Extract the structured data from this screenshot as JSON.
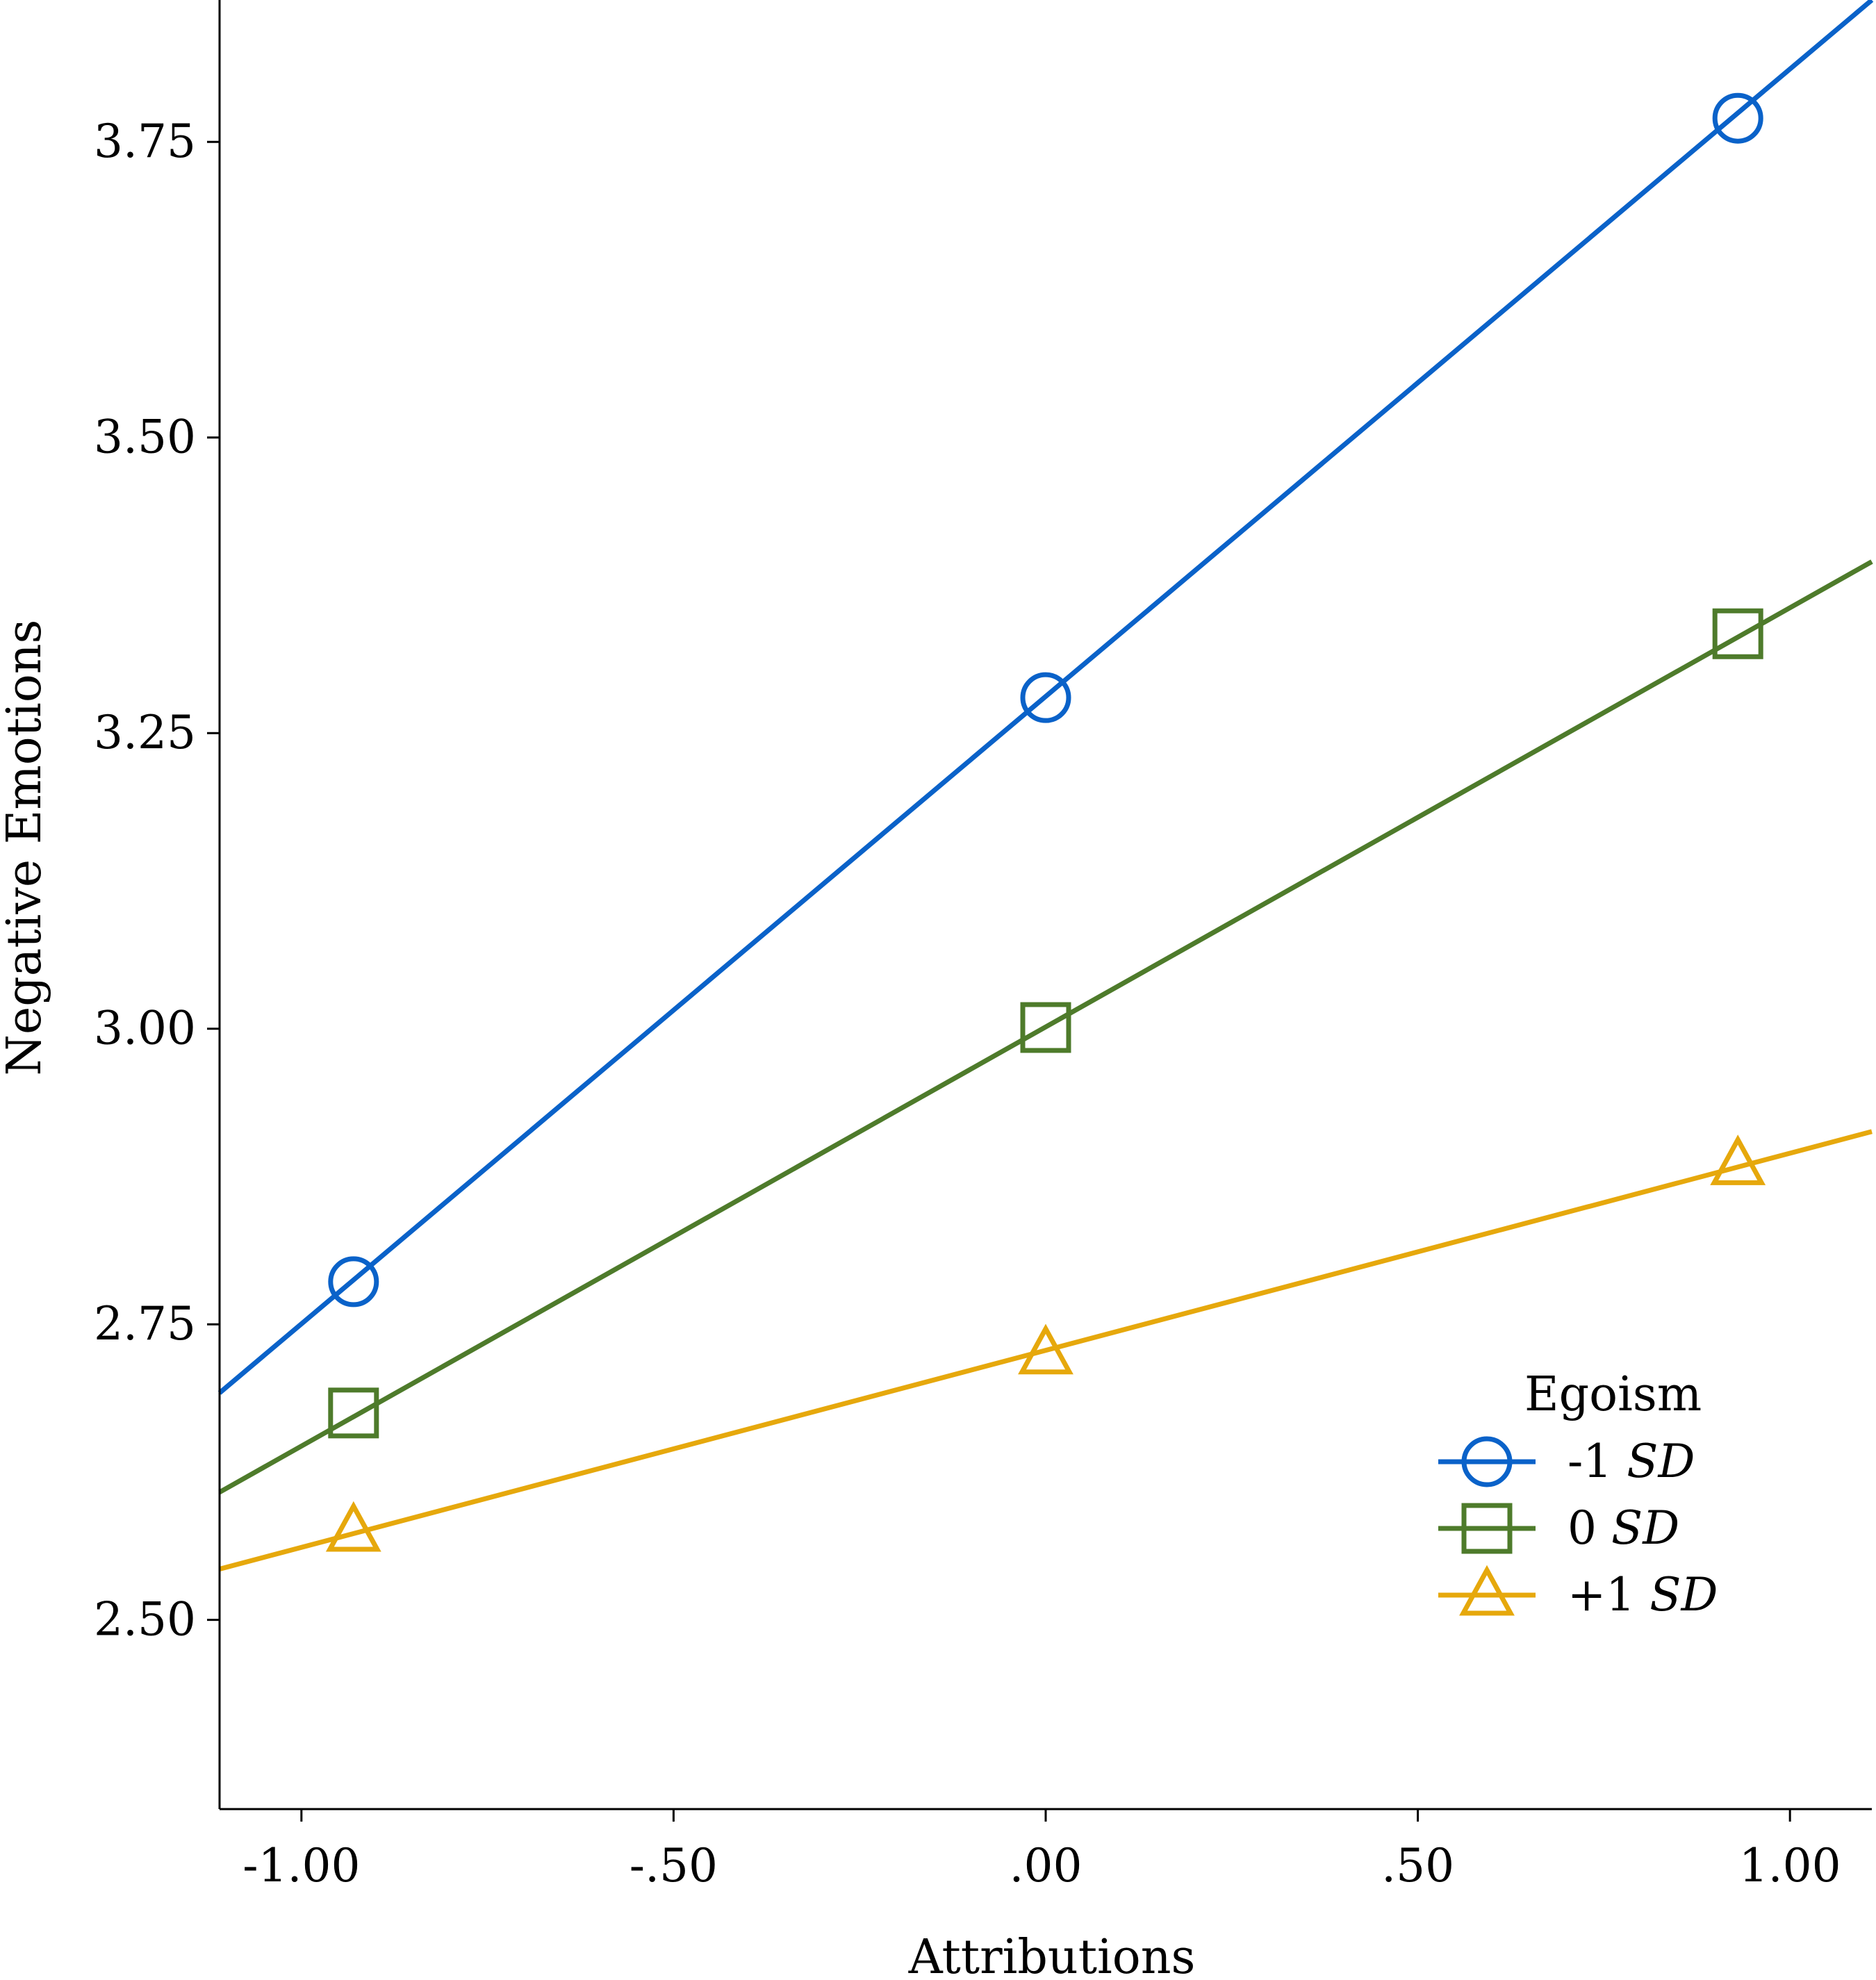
{
  "chart_data": {
    "type": "line",
    "title": "",
    "xlabel": "Attributions",
    "ylabel": "Negative Emotions",
    "xlim": [
      -1.11,
      1.11
    ],
    "ylim": [
      2.34,
      3.87
    ],
    "xticks": [
      -1.0,
      -0.5,
      0.0,
      0.5,
      1.0
    ],
    "xtick_labels": [
      "-1.00",
      "-.50",
      ".00",
      ".50",
      "1.00"
    ],
    "yticks": [
      2.5,
      2.75,
      3.0,
      3.25,
      3.5,
      3.75
    ],
    "ytick_labels": [
      "2.50",
      "2.75",
      "3.00",
      "3.25",
      "3.50",
      "3.75"
    ],
    "grid": false,
    "legend": {
      "title": "Egoism",
      "placement": "lower-right"
    },
    "series": [
      {
        "name": "-1",
        "name_suffix": "SD",
        "marker": "circle",
        "color": "#0a62c9",
        "x": [
          -0.93,
          0.0,
          0.93
        ],
        "y": [
          2.786,
          3.28,
          3.77
        ],
        "line": {
          "x": [
            -1.11,
            1.11
          ],
          "y": [
            2.692,
            3.87
          ]
        }
      },
      {
        "name": "0",
        "name_suffix": "SD",
        "marker": "square",
        "color": "#4e7b2b",
        "x": [
          -0.93,
          0.0,
          0.93
        ],
        "y": [
          2.675,
          3.001,
          3.334
        ],
        "line": {
          "x": [
            -1.11,
            1.11
          ],
          "y": [
            2.608,
            3.395
          ]
        }
      },
      {
        "name": "+1",
        "name_suffix": "SD",
        "marker": "triangle",
        "color": "#e6a80c",
        "x": [
          -0.93,
          0.0,
          0.93
        ],
        "y": [
          2.575,
          2.725,
          2.885
        ],
        "line": {
          "x": [
            -1.11,
            1.11
          ],
          "y": [
            2.543,
            2.913
          ]
        }
      }
    ]
  }
}
